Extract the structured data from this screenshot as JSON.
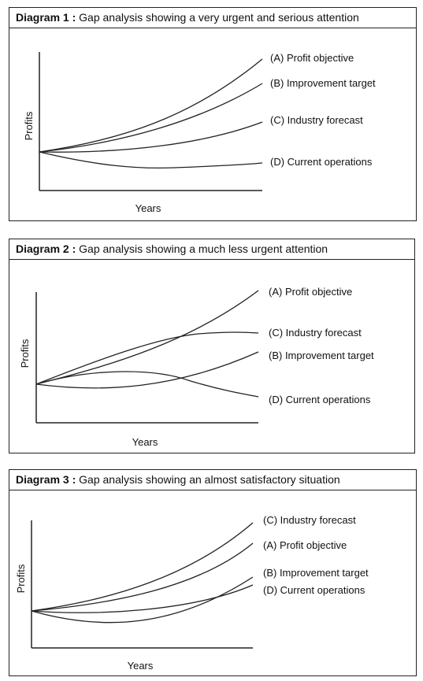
{
  "axis_labels": {
    "y": "Profits",
    "x": "Years"
  },
  "diagrams": [
    {
      "title_bold": "Diagram 1 :",
      "title_rest": " Gap analysis showing a very urgent and serious attention",
      "labels": {
        "A": "(A) Profit objective",
        "B": "(B) Improvement target",
        "C": "(C) Industry forecast",
        "D": "(D) Current operations"
      }
    },
    {
      "title_bold": "Diagram 2 :",
      "title_rest": " Gap analysis showing a much less urgent  attention",
      "labels": {
        "A": "(A) Profit objective",
        "C": "(C) Industry forecast",
        "B": "(B) Improvement target",
        "D": "(D) Current operations"
      }
    },
    {
      "title_bold": "Diagram 3 :",
      "title_rest": " Gap analysis showing an almost satisfactory situation",
      "labels": {
        "C": "(C) Industry forecast",
        "A": "(A) Profit objective",
        "B": "(B) Improvement target",
        "D": "(D) Current operations"
      }
    }
  ]
}
